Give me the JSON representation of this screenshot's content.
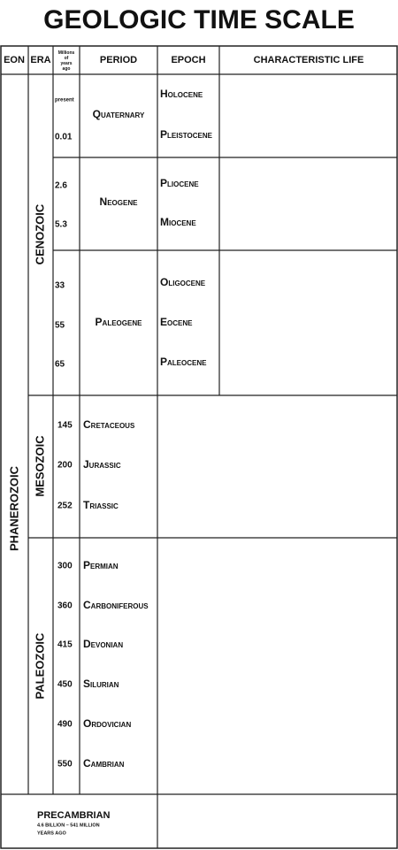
{
  "header": {
    "title": "GEOLOGIC TIME SCALE"
  },
  "columns": [
    "EON",
    "ERA",
    "Millions of years ago",
    "PERIOD",
    "EPOCH",
    "CHARACTERISTIC LIFE"
  ],
  "eon": "PHANEROZOIC",
  "eras": [
    "CENOZOIC",
    "MESOZOIC",
    "PALEOZOIC"
  ],
  "times": [
    "present",
    "0.01",
    "2.6",
    "5.3",
    "33",
    "55",
    "65",
    "145",
    "200",
    "252",
    "300",
    "360",
    "415",
    "450",
    "490",
    "550"
  ],
  "periods": [
    "Quaternary",
    "Neogene",
    "Paleogene",
    "Cretaceous",
    "Jurassic",
    "Triassic",
    "Permian",
    "Carboniferous",
    "Devonian",
    "Silurian",
    "Ordovician",
    "Cambrian"
  ],
  "epochs": [
    "Holocene",
    "Pleistocene",
    "Pliocene",
    "Miocene",
    "Oligocene",
    "Eocene",
    "Paleocene"
  ],
  "precambrian": {
    "name": "PRECAMBRIAN",
    "span": "4.6 BILLION – 541 MILLION",
    "span_unit": "YEARS AGO"
  }
}
